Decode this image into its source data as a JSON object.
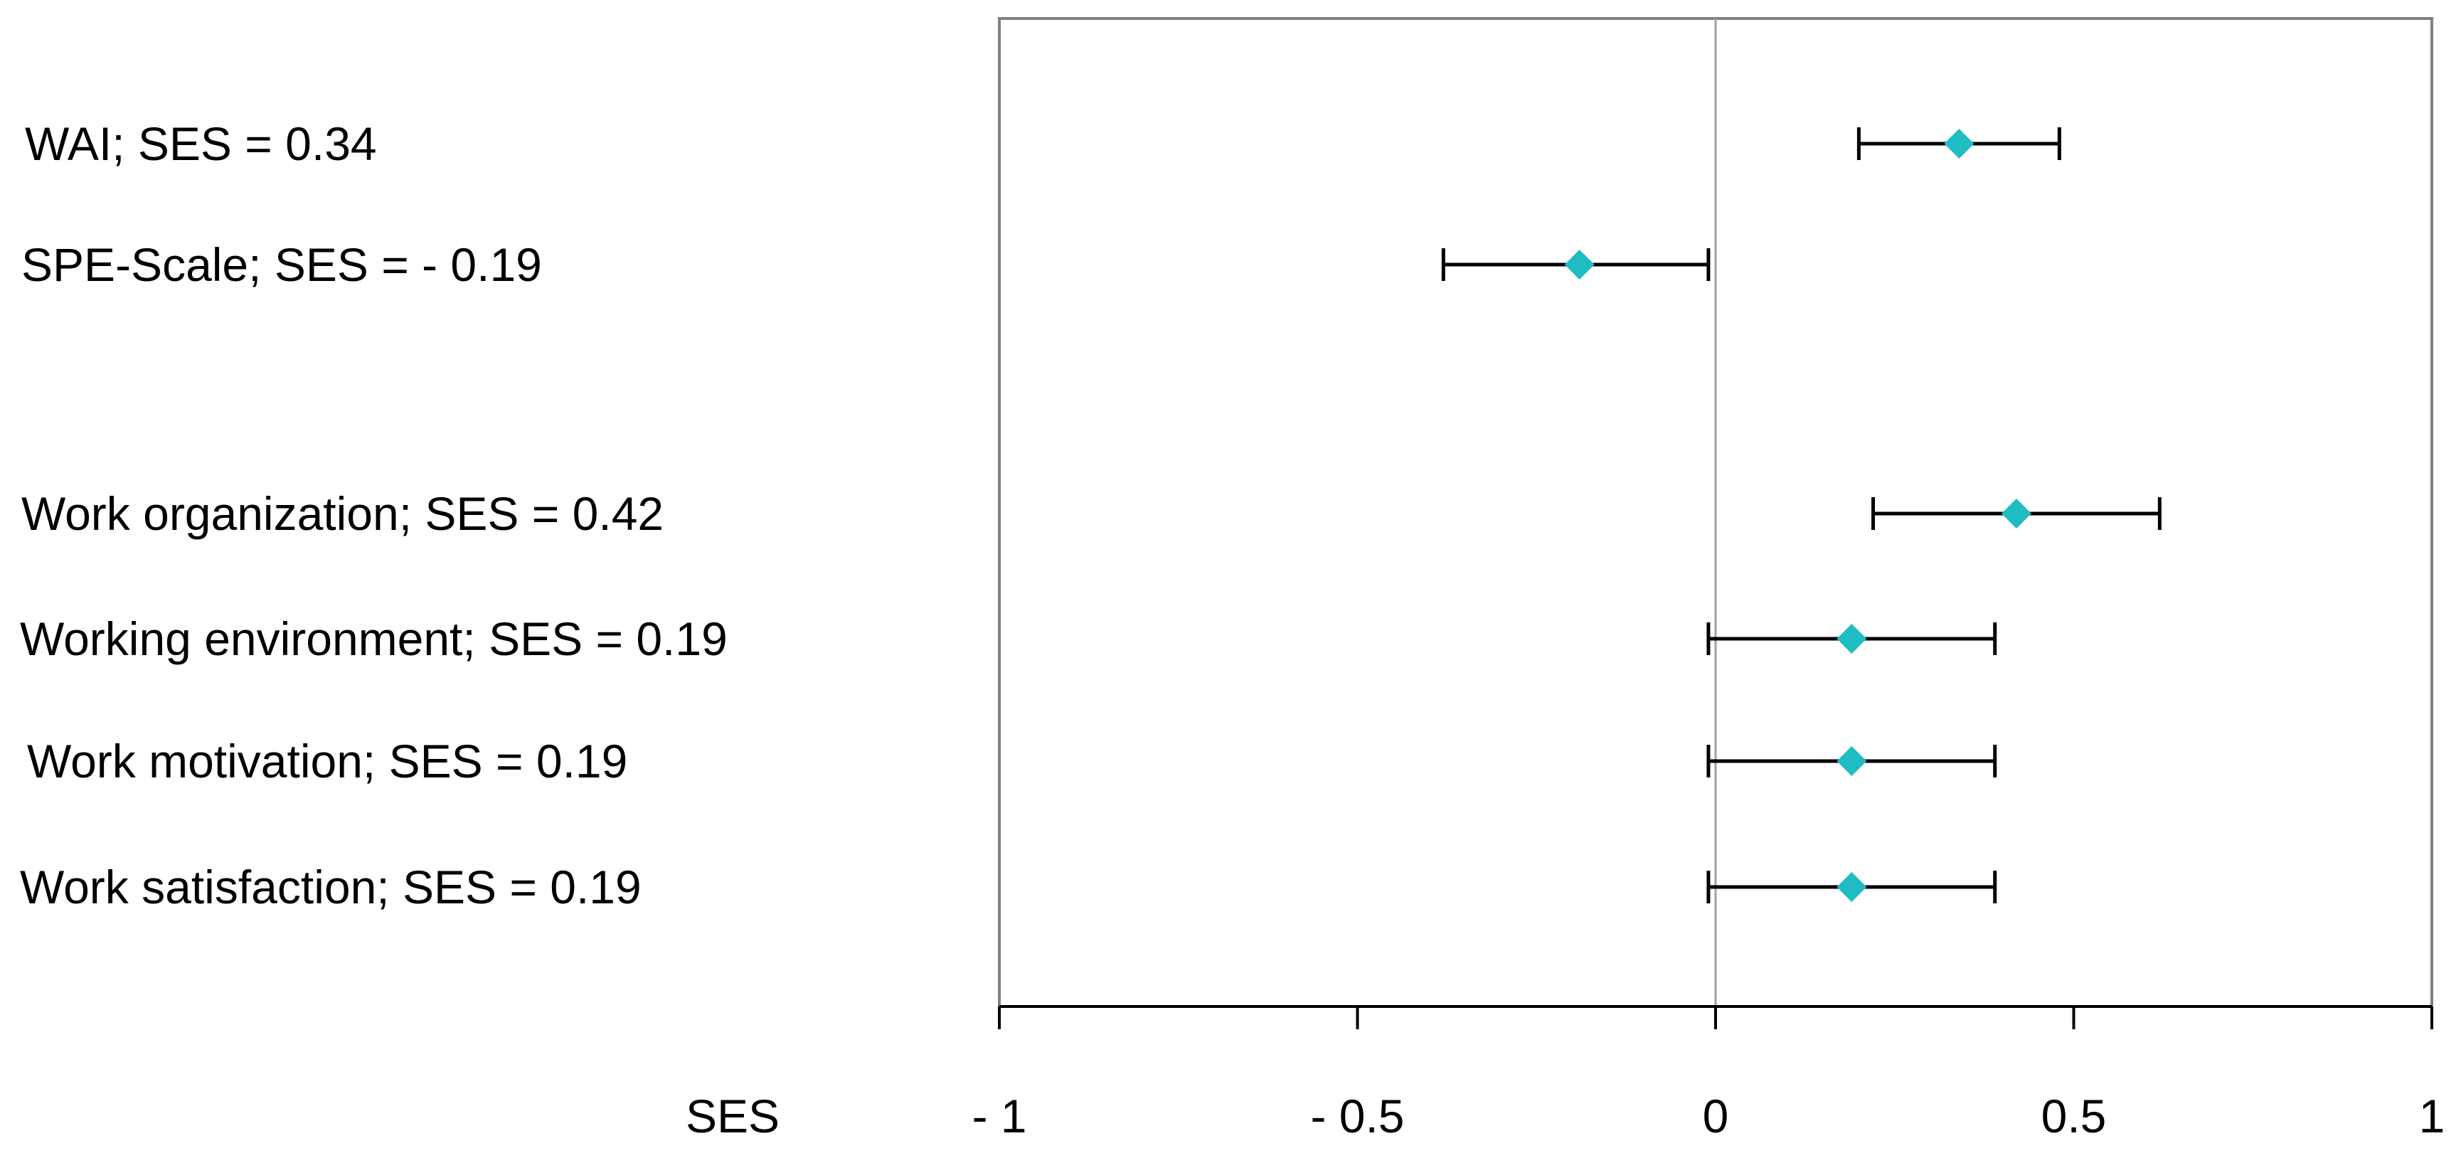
{
  "chart_data": {
    "type": "scatter",
    "orientation": "horizontal forest plot with error bars",
    "xlabel": "SES",
    "xlim": [
      -1,
      1
    ],
    "x_ticks": [
      -1,
      -0.5,
      0,
      0.5,
      1
    ],
    "x_tick_labels": [
      "- 1",
      "- 0.5",
      "0",
      "0.5",
      "1"
    ],
    "grid": false,
    "reference_line": 0,
    "marker_color": "#1fbcc4",
    "marker_shape": "diamond",
    "errorbar_color": "#000000",
    "rows": [
      {
        "label": "WAI; SES = 0.34",
        "value": 0.34,
        "ci": [
          0.2,
          0.48
        ]
      },
      {
        "label": "SPE-Scale; SES = - 0.19",
        "value": -0.19,
        "ci": [
          -0.38,
          -0.01
        ]
      },
      {
        "label": "Work organization; SES = 0.42",
        "value": 0.42,
        "ci": [
          0.22,
          0.62
        ]
      },
      {
        "label": "Working environment; SES = 0.19",
        "value": 0.19,
        "ci": [
          -0.01,
          0.39
        ]
      },
      {
        "label": "Work motivation; SES = 0.19",
        "value": 0.19,
        "ci": [
          -0.01,
          0.39
        ]
      },
      {
        "label": "Work satisfaction; SES = 0.19",
        "value": 0.19,
        "ci": [
          -0.01,
          0.39
        ]
      }
    ]
  }
}
